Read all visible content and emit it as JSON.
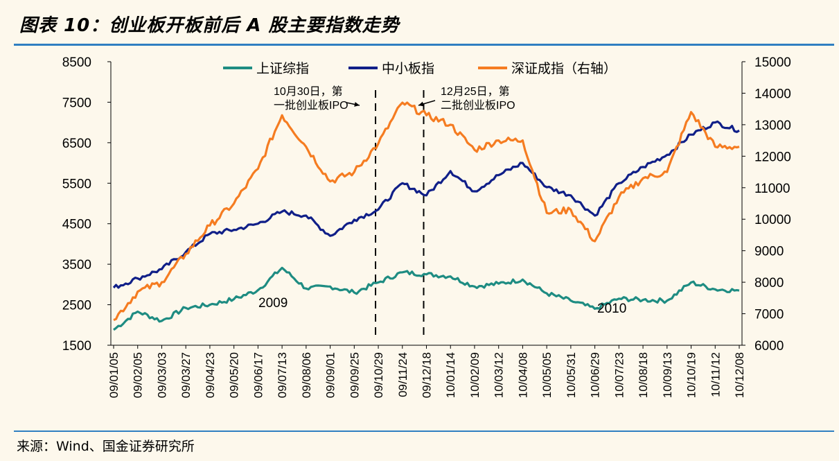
{
  "figure": {
    "title": "图表 10：创业板开板前后 A 股主要指数走势",
    "source": "来源：Wind、国金证券研究所"
  },
  "chart_data": {
    "type": "line",
    "grid": false,
    "legend_position": "top",
    "x_ticks": [
      "09/01/05",
      "09/02/05",
      "09/03/03",
      "09/03/27",
      "09/04/23",
      "09/05/20",
      "09/06/17",
      "09/07/13",
      "09/08/06",
      "09/09/01",
      "09/09/25",
      "09/10/29",
      "09/11/24",
      "09/12/18",
      "10/01/14",
      "10/02/09",
      "10/03/12",
      "10/04/08",
      "10/05/05",
      "10/05/31",
      "10/06/29",
      "10/07/23",
      "10/08/18",
      "10/09/13",
      "10/10/19",
      "10/11/12",
      "10/12/08"
    ],
    "y_left": {
      "min": 1500,
      "max": 8500,
      "ticks": [
        1500,
        2500,
        3500,
        4500,
        5500,
        6500,
        7500,
        8500
      ]
    },
    "y_right": {
      "min": 6000,
      "max": 15000,
      "ticks": [
        6000,
        7000,
        8000,
        9000,
        10000,
        11000,
        12000,
        13000,
        14000,
        15000
      ]
    },
    "series": [
      {
        "name": "上证综指",
        "axis": "left",
        "color": "#1e8c82",
        "values": [
          1880,
          2330,
          2100,
          2420,
          2500,
          2640,
          2860,
          3410,
          2900,
          2950,
          2800,
          3050,
          3300,
          3250,
          3200,
          2950,
          3020,
          3120,
          2780,
          2600,
          2400,
          2650,
          2620,
          2600,
          3050,
          2880,
          2850
        ]
      },
      {
        "name": "中小板指",
        "axis": "left",
        "color": "#101f88",
        "values": [
          2920,
          3150,
          3380,
          3800,
          4250,
          4350,
          4500,
          4800,
          4700,
          4200,
          4600,
          4850,
          5500,
          5200,
          5800,
          5300,
          5700,
          6000,
          5400,
          5200,
          4700,
          5500,
          5900,
          6200,
          6700,
          7000,
          6800
        ]
      },
      {
        "name": "深证成指（右轴）",
        "axis": "right",
        "color": "#f57c21",
        "values": [
          6800,
          7700,
          8000,
          8900,
          9800,
          10500,
          11600,
          13300,
          12300,
          11200,
          11500,
          12400,
          13700,
          13300,
          13000,
          12200,
          12500,
          12500,
          10200,
          10300,
          9300,
          10700,
          11300,
          11500,
          13400,
          12300,
          12300
        ]
      }
    ],
    "annotations": [
      {
        "label_lines": [
          "10月30日，第",
          "一批创业板IPO"
        ],
        "at_tick": "09/10/29"
      },
      {
        "label_lines": [
          "12月25日，第",
          "二批创业板IPO"
        ],
        "at_tick": "09/12/18"
      }
    ],
    "year_labels": [
      "2009",
      "2010"
    ]
  }
}
